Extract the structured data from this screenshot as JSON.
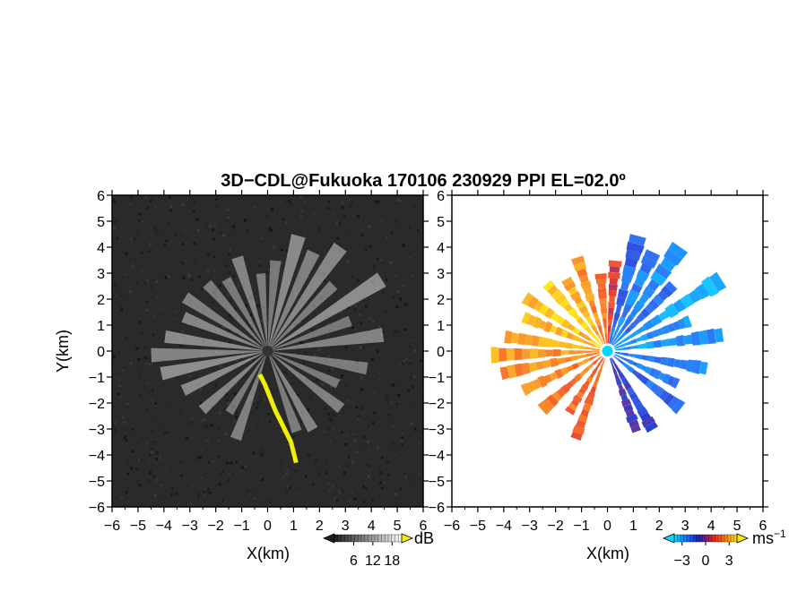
{
  "chart_data": [
    {
      "type": "heatmap",
      "panel": "left",
      "title": "3D−CDL@Fukuoka 170106 230929 PPI EL=02.0º",
      "quantity": "signal-to-noise ratio",
      "xlabel": "X(km)",
      "ylabel": "Y(km)",
      "xlim": [
        -6,
        6
      ],
      "ylim": [
        -6,
        6
      ],
      "xticks": [
        "−6",
        "−5",
        "−4",
        "−3",
        "−2",
        "−1",
        "0",
        "1",
        "2",
        "3",
        "4",
        "5",
        "6"
      ],
      "yticks": [
        "6",
        "5",
        "4",
        "3",
        "2",
        "1",
        "0",
        "−1",
        "−2",
        "−3",
        "−4",
        "−5",
        "−6"
      ],
      "colorbar": {
        "unit": "dB",
        "ticks": [
          "6",
          "12",
          "18"
        ],
        "range": [
          0,
          21
        ],
        "extend": "both",
        "colormap": "gray"
      },
      "background_color": "#2a2a2a",
      "highlight_color": "#f0f000",
      "rays": [
        {
          "az": 15,
          "len": 4.6,
          "v": 0.8
        },
        {
          "az": 25,
          "len": 4.2,
          "v": 0.65
        },
        {
          "az": 35,
          "len": 4.9,
          "v": 0.75
        },
        {
          "az": 45,
          "len": 3.6,
          "v": 0.6
        },
        {
          "az": 58,
          "len": 5.2,
          "v": 0.85
        },
        {
          "az": 70,
          "len": 3.4,
          "v": 0.55
        },
        {
          "az": 82,
          "len": 4.5,
          "v": 0.7
        },
        {
          "az": 100,
          "len": 3.9,
          "v": 0.6
        },
        {
          "az": 115,
          "len": 3.0,
          "v": 0.55
        },
        {
          "az": 128,
          "len": 3.6,
          "v": 0.65
        },
        {
          "az": 150,
          "len": 3.5,
          "v": 0.7
        },
        {
          "az": 160,
          "len": 3.3,
          "v": 0.6
        },
        {
          "az": 200,
          "len": 3.6,
          "v": 0.65
        },
        {
          "az": 212,
          "len": 2.8,
          "v": 0.55
        },
        {
          "az": 228,
          "len": 3.4,
          "v": 0.75
        },
        {
          "az": 245,
          "len": 3.6,
          "v": 0.8
        },
        {
          "az": 258,
          "len": 4.2,
          "v": 0.85
        },
        {
          "az": 268,
          "len": 4.5,
          "v": 0.7
        },
        {
          "az": 278,
          "len": 4.0,
          "v": 0.8
        },
        {
          "az": 292,
          "len": 3.5,
          "v": 0.75
        },
        {
          "az": 303,
          "len": 3.8,
          "v": 0.65
        },
        {
          "az": 318,
          "len": 3.5,
          "v": 0.6
        },
        {
          "az": 330,
          "len": 3.2,
          "v": 0.55
        },
        {
          "az": 342,
          "len": 3.8,
          "v": 0.7
        },
        {
          "az": 355,
          "len": 3.0,
          "v": 0.6
        },
        {
          "az": 5,
          "len": 3.5,
          "v": 0.55
        }
      ],
      "highlight_track": [
        [
          -0.3,
          -0.9
        ],
        [
          -0.1,
          -1.3
        ],
        [
          0.1,
          -1.8
        ],
        [
          0.3,
          -2.3
        ],
        [
          0.5,
          -2.7
        ],
        [
          0.7,
          -3.1
        ],
        [
          0.9,
          -3.5
        ],
        [
          1.1,
          -4.3
        ]
      ]
    },
    {
      "type": "heatmap",
      "panel": "right",
      "quantity": "radial velocity",
      "xlabel": "X(km)",
      "xlim": [
        -6,
        6
      ],
      "ylim": [
        -6,
        6
      ],
      "xticks": [
        "−6",
        "−5",
        "−4",
        "−3",
        "−2",
        "−1",
        "0",
        "1",
        "2",
        "3",
        "4",
        "5",
        "6"
      ],
      "yticks": [
        "6",
        "5",
        "4",
        "3",
        "2",
        "1",
        "0",
        "−1",
        "−2",
        "−3",
        "−4",
        "−5",
        "−6"
      ],
      "colorbar": {
        "unit": "ms",
        "unit_exponent": "−1",
        "ticks": [
          "−3",
          "0",
          "3"
        ],
        "range": [
          -4,
          4
        ],
        "extend": "both",
        "colormap": "cyan-blue-red-orange-yellow"
      },
      "rays": [
        {
          "az": 15,
          "len": 4.6,
          "vel": -2.0
        },
        {
          "az": 25,
          "len": 4.2,
          "vel": -2.5
        },
        {
          "az": 35,
          "len": 4.9,
          "vel": -2.8
        },
        {
          "az": 45,
          "len": 3.6,
          "vel": -2.2
        },
        {
          "az": 58,
          "len": 5.2,
          "vel": -3.0
        },
        {
          "az": 70,
          "len": 3.4,
          "vel": -2.6
        },
        {
          "az": 82,
          "len": 4.5,
          "vel": -2.9
        },
        {
          "az": 100,
          "len": 3.9,
          "vel": -2.5
        },
        {
          "az": 115,
          "len": 3.0,
          "vel": -2.2
        },
        {
          "az": 128,
          "len": 3.6,
          "vel": -2.0
        },
        {
          "az": 150,
          "len": 3.5,
          "vel": -1.2
        },
        {
          "az": 160,
          "len": 3.3,
          "vel": -0.8
        },
        {
          "az": 200,
          "len": 3.6,
          "vel": 1.8
        },
        {
          "az": 212,
          "len": 2.8,
          "vel": 2.0
        },
        {
          "az": 228,
          "len": 3.4,
          "vel": 2.2
        },
        {
          "az": 245,
          "len": 3.6,
          "vel": 2.4
        },
        {
          "az": 258,
          "len": 4.2,
          "vel": 2.6
        },
        {
          "az": 268,
          "len": 4.5,
          "vel": 2.8
        },
        {
          "az": 278,
          "len": 4.0,
          "vel": 3.0
        },
        {
          "az": 292,
          "len": 3.5,
          "vel": 3.2
        },
        {
          "az": 303,
          "len": 3.8,
          "vel": 3.4
        },
        {
          "az": 318,
          "len": 3.5,
          "vel": 3.6
        },
        {
          "az": 330,
          "len": 3.2,
          "vel": 3.2
        },
        {
          "az": 342,
          "len": 3.8,
          "vel": 2.6
        },
        {
          "az": 355,
          "len": 3.0,
          "vel": 2.2
        },
        {
          "az": 5,
          "len": 3.5,
          "vel": 1.0
        }
      ]
    }
  ]
}
